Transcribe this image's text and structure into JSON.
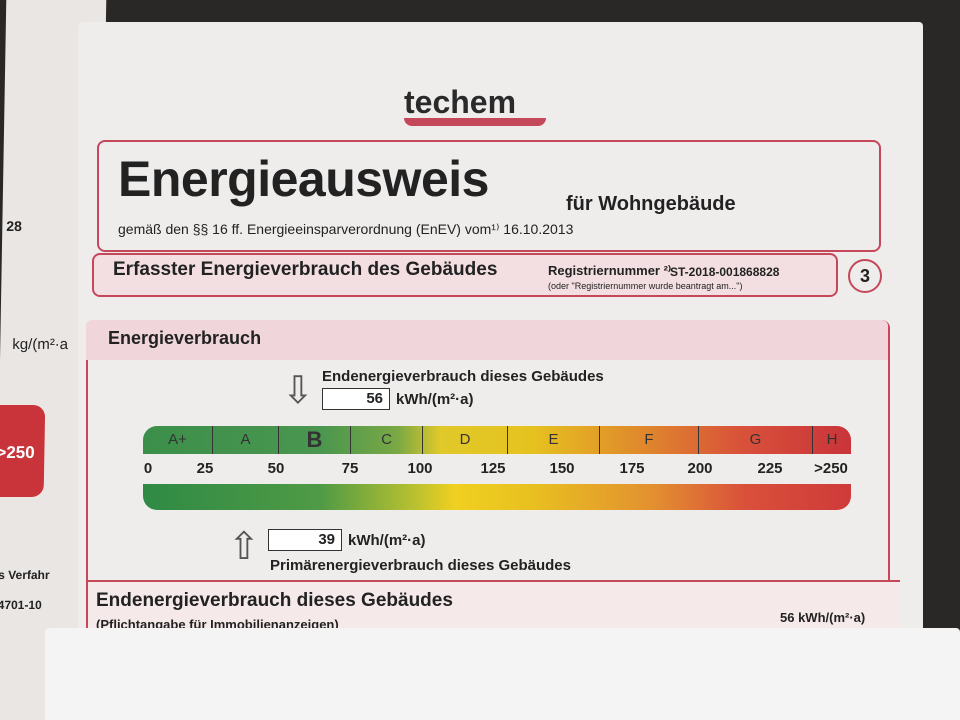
{
  "left_page": {
    "fragment_1": "28",
    "fragment_2": "kg/(m²·a",
    "fragment_3": ">250",
    "fragment_4": "s Verfahr",
    "fragment_5": "4701-10"
  },
  "logo": "techem",
  "header": {
    "title": "Energieausweis",
    "subtitle": "für Wohngebäude",
    "legal": "gemäß den §§ 16 ff. Energieeinsparverordnung (EnEV) vom¹⁾ 16.10.2013"
  },
  "section": {
    "title": "Erfasster Energieverbrauch des Gebäudes",
    "reg_label": "Registriernummer ²⁾",
    "reg_number": "ST-2018-001868828",
    "reg_note": "(oder \"Registriernummer wurde beantragt am...\")",
    "page_number": "3"
  },
  "energy": {
    "title": "Energieverbrauch",
    "end_label": "Endenergieverbrauch dieses Gebäudes",
    "end_value": "56",
    "unit": "kWh/(m²·a)",
    "primary_label": "Primärenergieverbrauch dieses Gebäudes",
    "primary_value": "39",
    "classes": [
      "A+",
      "A",
      "B",
      "C",
      "D",
      "E",
      "F",
      "G",
      "H"
    ],
    "highlighted_class": "B",
    "ticks": [
      "0",
      "25",
      "50",
      "75",
      "100",
      "125",
      "150",
      "175",
      "200",
      "225",
      ">250"
    ]
  },
  "bottom": {
    "title": "Endenergieverbrauch dieses Gebäudes",
    "note": "(Pflichtangabe für Immobilienanzeigen)",
    "value": "56 kWh/(m²·a)"
  },
  "colors": {
    "accent": "#c4485a"
  }
}
